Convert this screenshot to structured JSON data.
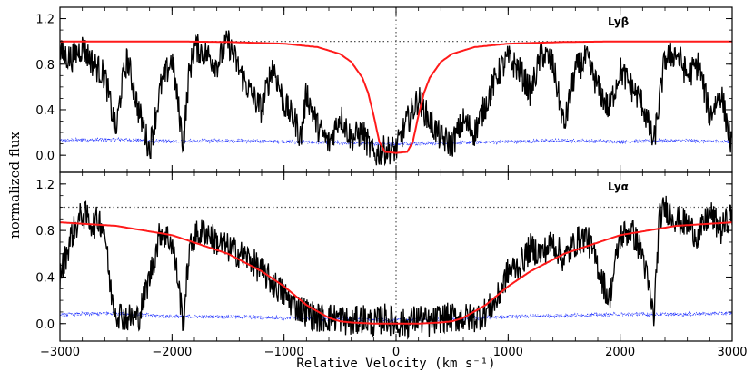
{
  "chart_data": {
    "type": "line",
    "xlabel": "Relative Velocity (km s⁻¹)",
    "ylabel": "normalized flux",
    "xlim": [
      -3000,
      3000
    ],
    "xticks": [
      -3000,
      -2000,
      -1000,
      0,
      1000,
      2000,
      3000
    ],
    "colors": {
      "data": "#000000",
      "fit": "#ff1a1a",
      "error": "#2233ff",
      "reference": "#555555"
    },
    "panels": [
      {
        "label": "Lyβ",
        "ylim": [
          -0.15,
          1.3
        ],
        "yticks": [
          0.0,
          0.4,
          0.8,
          1.2
        ],
        "grid": false,
        "series": [
          {
            "role": "observed flux",
            "x": [
              -3000,
              -2900,
              -2800,
              -2700,
              -2600,
              -2500,
              -2450,
              -2400,
              -2300,
              -2200,
              -2100,
              -2000,
              -1900,
              -1850,
              -1800,
              -1700,
              -1600,
              -1500,
              -1400,
              -1300,
              -1200,
              -1100,
              -1000,
              -900,
              -850,
              -800,
              -700,
              -600,
              -500,
              -400,
              -300,
              -200,
              -100,
              0,
              100,
              200,
              300,
              400,
              500,
              600,
              700,
              800,
              900,
              1000,
              1100,
              1200,
              1300,
              1400,
              1500,
              1600,
              1700,
              1800,
              1900,
              2000,
              2100,
              2200,
              2300,
              2400,
              2500,
              2600,
              2700,
              2800,
              2900,
              3000
            ],
            "y": [
              0.9,
              0.85,
              0.95,
              0.8,
              0.7,
              0.2,
              0.6,
              0.85,
              0.4,
              0.05,
              0.6,
              0.85,
              0.1,
              0.7,
              0.95,
              0.9,
              0.8,
              1.0,
              0.75,
              0.55,
              0.4,
              0.8,
              0.45,
              0.3,
              0.15,
              0.55,
              0.25,
              0.1,
              0.35,
              0.15,
              0.2,
              0.0,
              0.05,
              0.05,
              0.3,
              0.5,
              0.3,
              0.15,
              0.1,
              0.3,
              0.2,
              0.45,
              0.7,
              0.85,
              0.75,
              0.55,
              0.9,
              0.8,
              0.25,
              0.75,
              0.85,
              0.6,
              0.4,
              0.75,
              0.6,
              0.45,
              0.1,
              0.85,
              0.9,
              0.7,
              0.8,
              0.35,
              0.55,
              0.05
            ]
          },
          {
            "role": "model profile",
            "x": [
              -3000,
              -2000,
              -1500,
              -1000,
              -700,
              -500,
              -400,
              -300,
              -250,
              -200,
              -150,
              -100,
              0,
              100,
              150,
              200,
              250,
              300,
              400,
              500,
              700,
              1000,
              1500,
              2000,
              3000
            ],
            "y": [
              1.0,
              1.0,
              0.995,
              0.98,
              0.95,
              0.89,
              0.82,
              0.68,
              0.55,
              0.35,
              0.12,
              0.03,
              0.02,
              0.03,
              0.12,
              0.35,
              0.55,
              0.68,
              0.82,
              0.89,
              0.95,
              0.98,
              0.995,
              1.0,
              1.0
            ]
          },
          {
            "role": "flux error",
            "x": [
              -3000,
              -2500,
              -2000,
              -1500,
              -1000,
              -500,
              0,
              500,
              1000,
              1500,
              2000,
              2500,
              3000
            ],
            "y": [
              0.13,
              0.14,
              0.12,
              0.13,
              0.12,
              0.11,
              0.1,
              0.11,
              0.12,
              0.13,
              0.12,
              0.13,
              0.12
            ]
          }
        ]
      },
      {
        "label": "Lyα",
        "ylim": [
          -0.15,
          1.3
        ],
        "yticks": [
          0.0,
          0.4,
          0.8,
          1.2
        ],
        "grid": false,
        "series": [
          {
            "role": "observed flux",
            "x": [
              -3000,
              -2900,
              -2800,
              -2700,
              -2650,
              -2600,
              -2550,
              -2500,
              -2400,
              -2300,
              -2200,
              -2100,
              -2000,
              -1950,
              -1900,
              -1850,
              -1800,
              -1700,
              -1600,
              -1500,
              -1400,
              -1300,
              -1200,
              -1100,
              -1000,
              -900,
              -800,
              -700,
              -600,
              -500,
              -400,
              -300,
              -200,
              -100,
              0,
              100,
              200,
              300,
              400,
              500,
              600,
              700,
              800,
              900,
              1000,
              1100,
              1200,
              1300,
              1400,
              1500,
              1600,
              1700,
              1800,
              1900,
              2000,
              2100,
              2200,
              2300,
              2350,
              2400,
              2500,
              2600,
              2700,
              2800,
              2900,
              3000
            ],
            "y": [
              0.4,
              0.75,
              0.95,
              0.85,
              0.9,
              0.8,
              0.3,
              0.1,
              0.05,
              0.05,
              0.4,
              0.8,
              0.7,
              0.4,
              0.0,
              0.6,
              0.75,
              0.8,
              0.7,
              0.65,
              0.6,
              0.55,
              0.45,
              0.35,
              0.25,
              0.15,
              0.1,
              0.05,
              0.05,
              0.05,
              0.0,
              0.05,
              0.0,
              0.05,
              0.0,
              0.0,
              0.05,
              0.0,
              0.05,
              0.05,
              0.05,
              0.05,
              0.1,
              0.2,
              0.45,
              0.5,
              0.65,
              0.6,
              0.7,
              0.55,
              0.7,
              0.75,
              0.5,
              0.2,
              0.75,
              0.8,
              0.6,
              0.05,
              0.9,
              1.0,
              0.9,
              0.85,
              0.75,
              0.95,
              0.8,
              0.95
            ]
          },
          {
            "role": "model profile",
            "x": [
              -3000,
              -2500,
              -2000,
              -1500,
              -1200,
              -1000,
              -800,
              -600,
              -500,
              -400,
              -200,
              0,
              200,
              400,
              500,
              600,
              800,
              1000,
              1200,
              1500,
              2000,
              2500,
              3000
            ],
            "y": [
              0.87,
              0.84,
              0.76,
              0.6,
              0.45,
              0.32,
              0.16,
              0.05,
              0.02,
              0.01,
              0.0,
              0.0,
              0.0,
              0.01,
              0.02,
              0.05,
              0.16,
              0.32,
              0.45,
              0.6,
              0.76,
              0.84,
              0.87
            ]
          },
          {
            "role": "flux error",
            "x": [
              -3000,
              -2500,
              -2000,
              -1500,
              -1000,
              -500,
              0,
              500,
              1000,
              1500,
              2000,
              2500,
              3000
            ],
            "y": [
              0.08,
              0.09,
              0.06,
              0.06,
              0.05,
              0.04,
              0.03,
              0.04,
              0.06,
              0.07,
              0.08,
              0.08,
              0.09
            ]
          }
        ]
      }
    ]
  }
}
